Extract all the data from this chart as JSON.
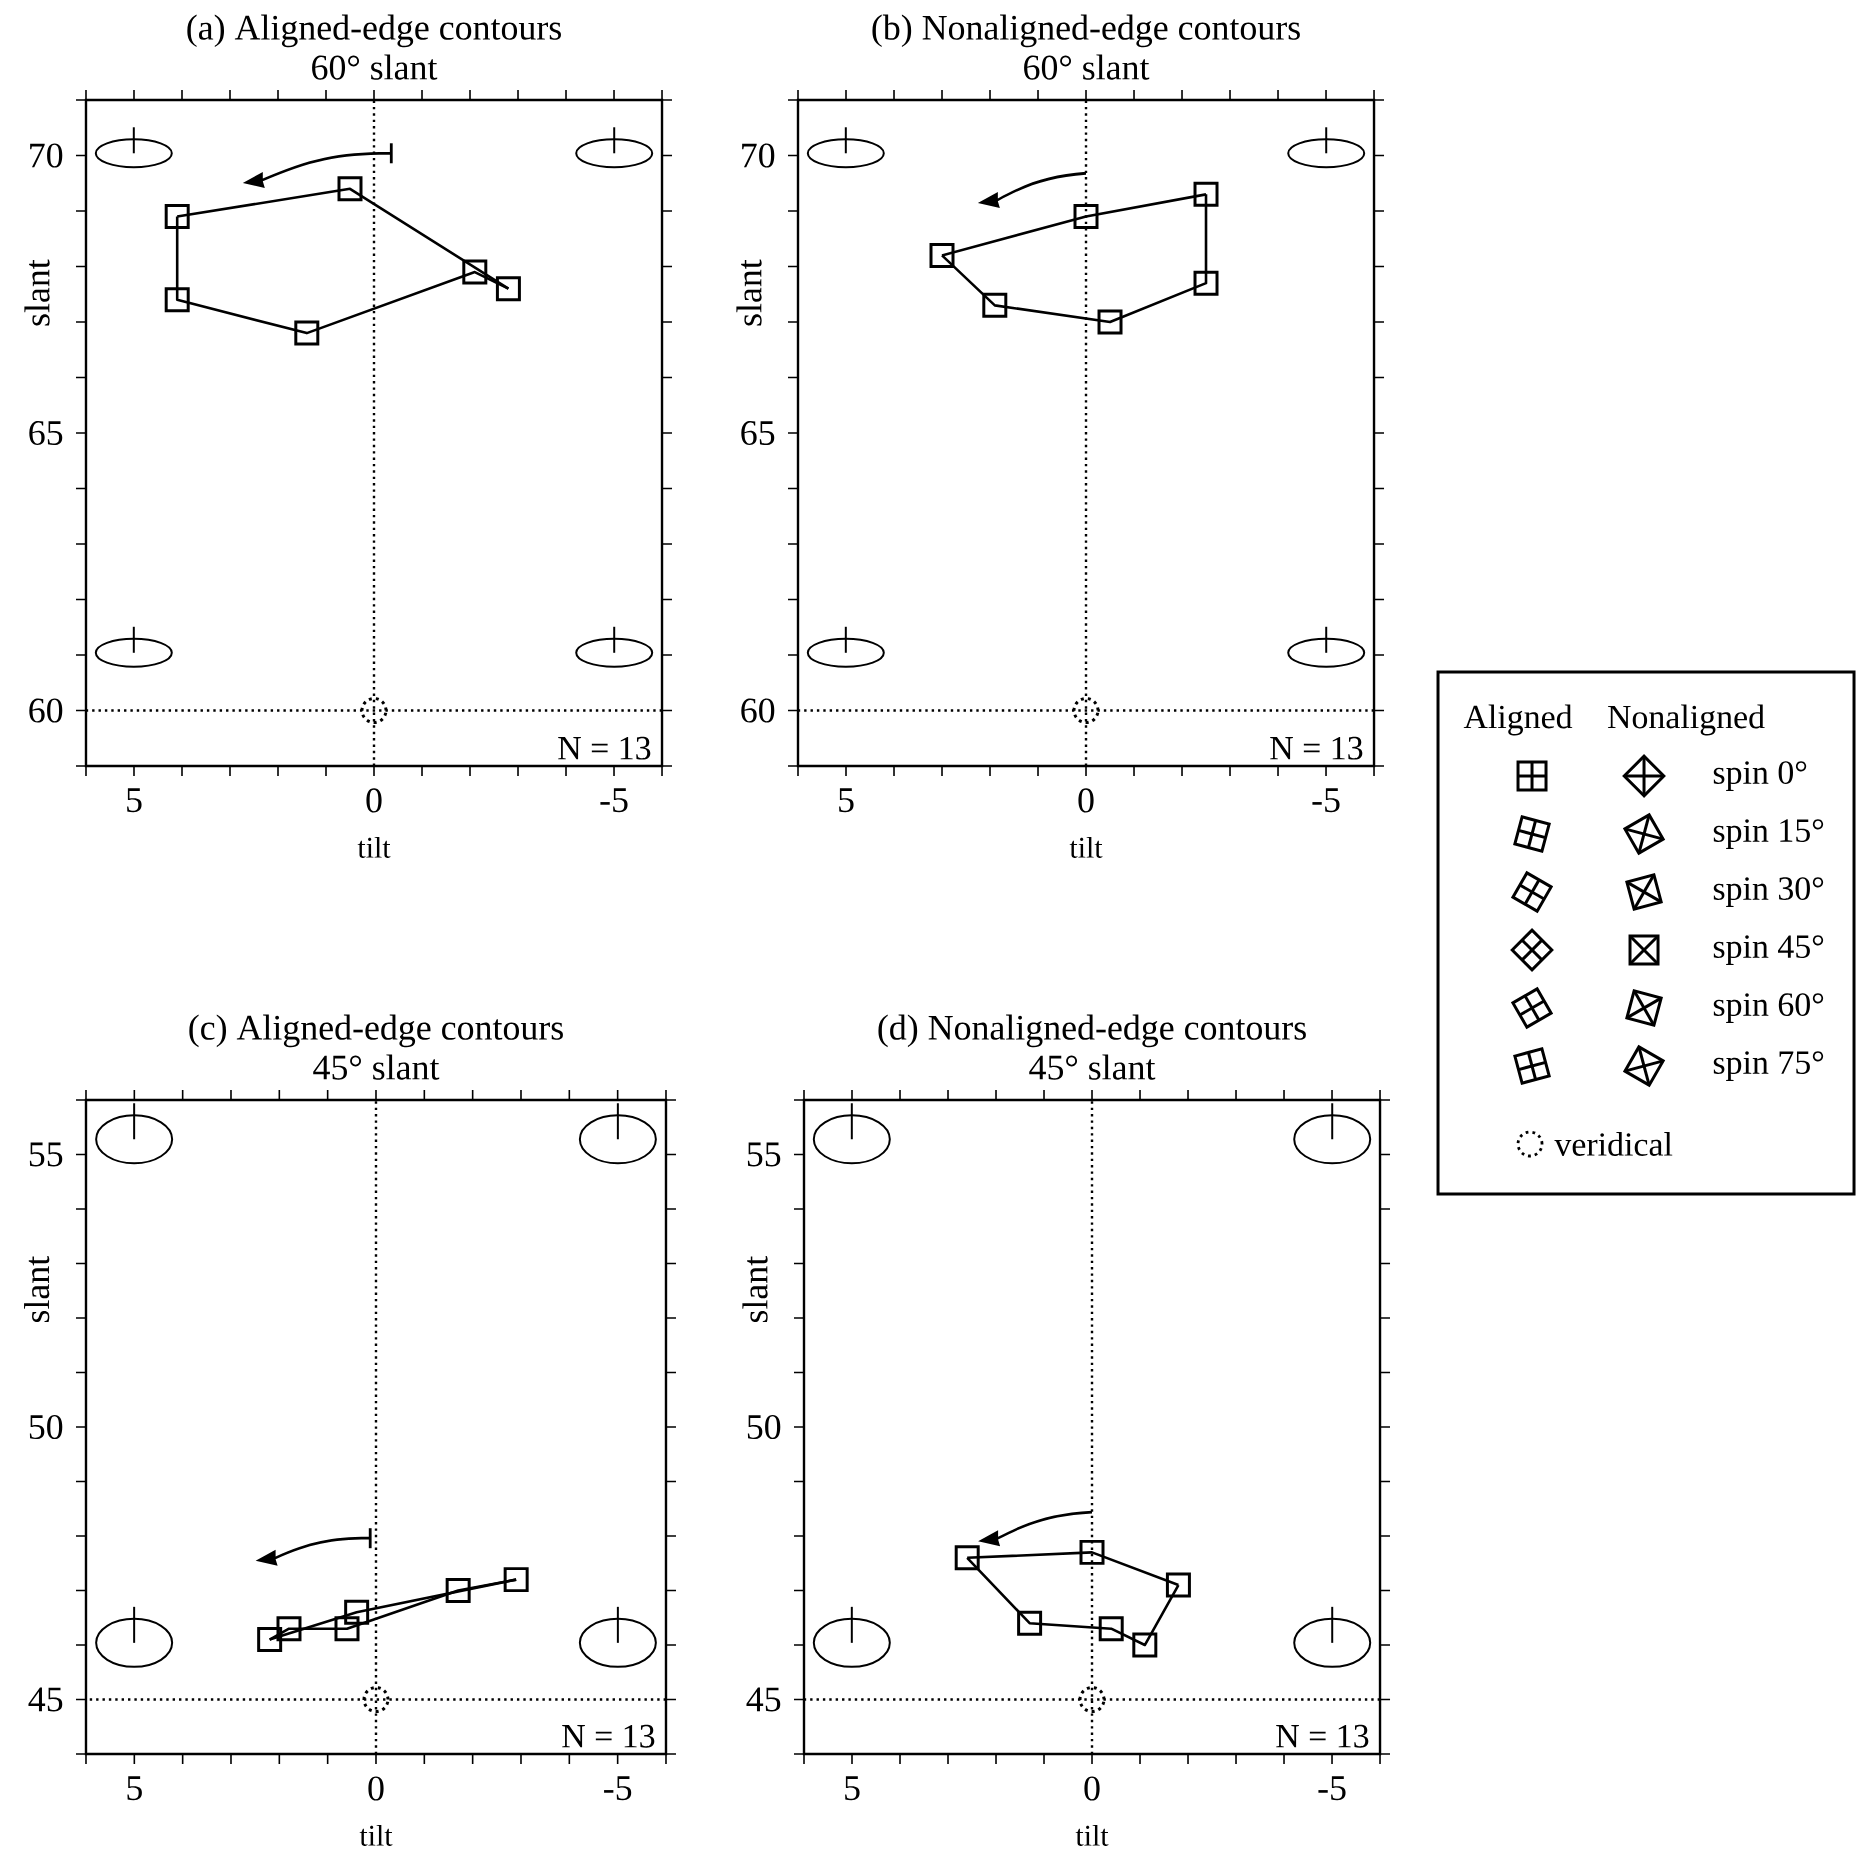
{
  "chart_data": [
    {
      "type": "line",
      "title": "(a) Aligned-edge contours",
      "subtitle": "60° slant",
      "xlabel": "tilt",
      "ylabel": "slant",
      "xlim": [
        6,
        -6
      ],
      "ylim": [
        59,
        71
      ],
      "xticks": [
        {
          "value": 6,
          "label": null
        },
        5,
        {
          "value": 4,
          "label": null
        },
        {
          "value": 3,
          "label": null
        },
        {
          "value": 2,
          "label": null
        },
        {
          "value": 1,
          "label": null
        },
        0,
        {
          "value": -1,
          "label": null
        },
        {
          "value": -2,
          "label": null
        },
        {
          "value": -3,
          "label": null
        },
        {
          "value": -4,
          "label": null
        },
        -5,
        {
          "value": -6,
          "label": null
        }
      ],
      "yticks": [
        {
          "value": 59,
          "label": null
        },
        60,
        {
          "value": 61,
          "label": null
        },
        {
          "value": 62,
          "label": null
        },
        {
          "value": 63,
          "label": null
        },
        {
          "value": 64,
          "label": null
        },
        65,
        {
          "value": 66,
          "label": null
        },
        {
          "value": 67,
          "label": null
        },
        {
          "value": 68,
          "label": null
        },
        {
          "value": 69,
          "label": null
        },
        70,
        {
          "value": 71,
          "label": null
        }
      ],
      "series": [
        {
          "type": "line",
          "color": "#000000",
          "x": [
            4.1,
            4.1,
            1.4,
            -2.1,
            -2.8
          ],
          "values": [
            68.9,
            67.4,
            66.8,
            67.9,
            67.6
          ]
        },
        {
          "type": "line",
          "color": "#000000",
          "x": [
            4.1,
            0.5,
            -2.8
          ],
          "values": [
            68.9,
            69.4,
            67.6
          ]
        },
        {
          "type": "scatter",
          "color": "#000000",
          "marker": "square",
          "x": [
            0.5,
            4.1,
            4.1,
            1.4,
            -2.1,
            -2.8
          ],
          "values": [
            69.4,
            68.9,
            67.4,
            66.8,
            67.9,
            67.6
          ]
        },
        {
          "type": "scatter",
          "color": "#000000",
          "marker": "circle",
          "line_style": "dotted",
          "x": [
            0
          ],
          "values": [
            60
          ]
        }
      ],
      "ref_lines": [
        {
          "axis": "x",
          "value": 0,
          "line_style": "dotted"
        },
        {
          "axis": "y",
          "value": 60,
          "line_style": "dotted"
        }
      ],
      "annotations": [
        "N = 13"
      ]
    },
    {
      "type": "line",
      "title": "(b) Nonaligned-edge contours",
      "subtitle": "60° slant",
      "xlabel": "tilt",
      "ylabel": "slant",
      "xlim": [
        6,
        -6
      ],
      "ylim": [
        59,
        71
      ],
      "xticks": [
        {
          "value": 6,
          "label": null
        },
        5,
        {
          "value": 4,
          "label": null
        },
        {
          "value": 3,
          "label": null
        },
        {
          "value": 2,
          "label": null
        },
        {
          "value": 1,
          "label": null
        },
        0,
        {
          "value": -1,
          "label": null
        },
        {
          "value": -2,
          "label": null
        },
        {
          "value": -3,
          "label": null
        },
        {
          "value": -4,
          "label": null
        },
        -5,
        {
          "value": -6,
          "label": null
        }
      ],
      "yticks": [
        {
          "value": 59,
          "label": null
        },
        60,
        {
          "value": 61,
          "label": null
        },
        {
          "value": 62,
          "label": null
        },
        {
          "value": 63,
          "label": null
        },
        {
          "value": 64,
          "label": null
        },
        65,
        {
          "value": 66,
          "label": null
        },
        {
          "value": 67,
          "label": null
        },
        {
          "value": 68,
          "label": null
        },
        {
          "value": 69,
          "label": null
        },
        70,
        {
          "value": 71,
          "label": null
        }
      ],
      "series": [
        {
          "type": "line",
          "color": "#000000",
          "x": [
            3.0,
            1.9,
            -0.5,
            -2.5,
            -2.5
          ],
          "values": [
            68.2,
            67.3,
            67.0,
            67.7,
            69.3
          ]
        },
        {
          "type": "line",
          "color": "#000000",
          "x": [
            3.0,
            0.0,
            -2.5
          ],
          "values": [
            68.2,
            68.9,
            69.3
          ]
        },
        {
          "type": "scatter",
          "color": "#000000",
          "marker": "square",
          "x": [
            0.0,
            3.0,
            1.9,
            -0.5,
            -2.5,
            -2.5
          ],
          "values": [
            68.9,
            68.2,
            67.3,
            67.0,
            67.7,
            69.3
          ]
        },
        {
          "type": "scatter",
          "color": "#000000",
          "marker": "circle",
          "line_style": "dotted",
          "x": [
            0
          ],
          "values": [
            60
          ]
        }
      ],
      "ref_lines": [
        {
          "axis": "x",
          "value": 0,
          "line_style": "dotted"
        },
        {
          "axis": "y",
          "value": 60,
          "line_style": "dotted"
        }
      ],
      "annotations": [
        "N = 13"
      ]
    },
    {
      "type": "line",
      "title": "(c) Aligned-edge contours",
      "subtitle": "45° slant",
      "xlabel": "tilt",
      "ylabel": "slant",
      "xlim": [
        6,
        -6
      ],
      "ylim": [
        44,
        56
      ],
      "xticks": [
        {
          "value": 6,
          "label": null
        },
        5,
        {
          "value": 4,
          "label": null
        },
        {
          "value": 3,
          "label": null
        },
        {
          "value": 2,
          "label": null
        },
        {
          "value": 1,
          "label": null
        },
        0,
        {
          "value": -1,
          "label": null
        },
        {
          "value": -2,
          "label": null
        },
        {
          "value": -3,
          "label": null
        },
        {
          "value": -4,
          "label": null
        },
        -5,
        {
          "value": -6,
          "label": null
        }
      ],
      "yticks": [
        {
          "value": 44,
          "label": null
        },
        45,
        {
          "value": 46,
          "label": null
        },
        {
          "value": 47,
          "label": null
        },
        {
          "value": 48,
          "label": null
        },
        {
          "value": 49,
          "label": null
        },
        50,
        {
          "value": 51,
          "label": null
        },
        {
          "value": 52,
          "label": null
        },
        {
          "value": 53,
          "label": null
        },
        {
          "value": 54,
          "label": null
        },
        55,
        {
          "value": 56,
          "label": null
        }
      ],
      "series": [
        {
          "type": "line",
          "color": "#000000",
          "x": [
            2.2,
            1.8,
            0.6,
            -1.7,
            -2.9
          ],
          "values": [
            46.1,
            46.3,
            46.3,
            47.0,
            47.2
          ]
        },
        {
          "type": "line",
          "color": "#000000",
          "x": [
            2.2,
            0.4,
            -2.9
          ],
          "values": [
            46.1,
            46.6,
            47.2
          ]
        },
        {
          "type": "scatter",
          "color": "#000000",
          "marker": "square",
          "x": [
            0.4,
            2.2,
            1.8,
            0.6,
            -1.7,
            -2.9
          ],
          "values": [
            46.6,
            46.1,
            46.3,
            46.3,
            47.0,
            47.2
          ]
        },
        {
          "type": "scatter",
          "color": "#000000",
          "marker": "circle",
          "line_style": "dotted",
          "x": [
            0
          ],
          "values": [
            45
          ]
        }
      ],
      "ref_lines": [
        {
          "axis": "x",
          "value": 0,
          "line_style": "dotted"
        },
        {
          "axis": "y",
          "value": 45,
          "line_style": "dotted"
        }
      ],
      "annotations": [
        "N = 13"
      ]
    },
    {
      "type": "line",
      "title": "(d) Nonaligned-edge contours",
      "subtitle": "45° slant",
      "xlabel": "tilt",
      "ylabel": "slant",
      "xlim": [
        6,
        -6
      ],
      "ylim": [
        44,
        56
      ],
      "xticks": [
        {
          "value": 6,
          "label": null
        },
        5,
        {
          "value": 4,
          "label": null
        },
        {
          "value": 3,
          "label": null
        },
        {
          "value": 2,
          "label": null
        },
        {
          "value": 1,
          "label": null
        },
        0,
        {
          "value": -1,
          "label": null
        },
        {
          "value": -2,
          "label": null
        },
        {
          "value": -3,
          "label": null
        },
        {
          "value": -4,
          "label": null
        },
        -5,
        {
          "value": -6,
          "label": null
        }
      ],
      "yticks": [
        {
          "value": 44,
          "label": null
        },
        45,
        {
          "value": 46,
          "label": null
        },
        {
          "value": 47,
          "label": null
        },
        {
          "value": 48,
          "label": null
        },
        {
          "value": 49,
          "label": null
        },
        50,
        {
          "value": 51,
          "label": null
        },
        {
          "value": 52,
          "label": null
        },
        {
          "value": 53,
          "label": null
        },
        {
          "value": 54,
          "label": null
        },
        55,
        {
          "value": 56,
          "label": null
        }
      ],
      "series": [
        {
          "type": "line",
          "color": "#000000",
          "x": [
            2.6,
            1.3,
            -0.4,
            -1.1,
            -1.8
          ],
          "values": [
            47.6,
            46.4,
            46.3,
            46.0,
            47.1
          ]
        },
        {
          "type": "line",
          "color": "#000000",
          "x": [
            2.6,
            0.0,
            -1.8
          ],
          "values": [
            47.6,
            47.7,
            47.1
          ]
        },
        {
          "type": "scatter",
          "color": "#000000",
          "marker": "square",
          "x": [
            0.0,
            2.6,
            1.3,
            -0.4,
            -1.1,
            -1.8
          ],
          "values": [
            47.7,
            47.6,
            46.4,
            46.3,
            46.0,
            47.1
          ]
        },
        {
          "type": "scatter",
          "color": "#000000",
          "marker": "circle",
          "line_style": "dotted",
          "x": [
            0
          ],
          "values": [
            45
          ]
        }
      ],
      "ref_lines": [
        {
          "axis": "x",
          "value": 0,
          "line_style": "dotted"
        },
        {
          "axis": "y",
          "value": 45,
          "line_style": "dotted"
        }
      ],
      "annotations": [
        "N = 13"
      ]
    },
    {
      "type": "other",
      "categories": [
        "spin 0°",
        "spin 15°",
        "spin 30°",
        "spin 45°",
        "spin 60°",
        "spin 75°"
      ],
      "annotations": [
        "Aligned",
        "Nonaligned",
        "veridical"
      ]
    }
  ]
}
